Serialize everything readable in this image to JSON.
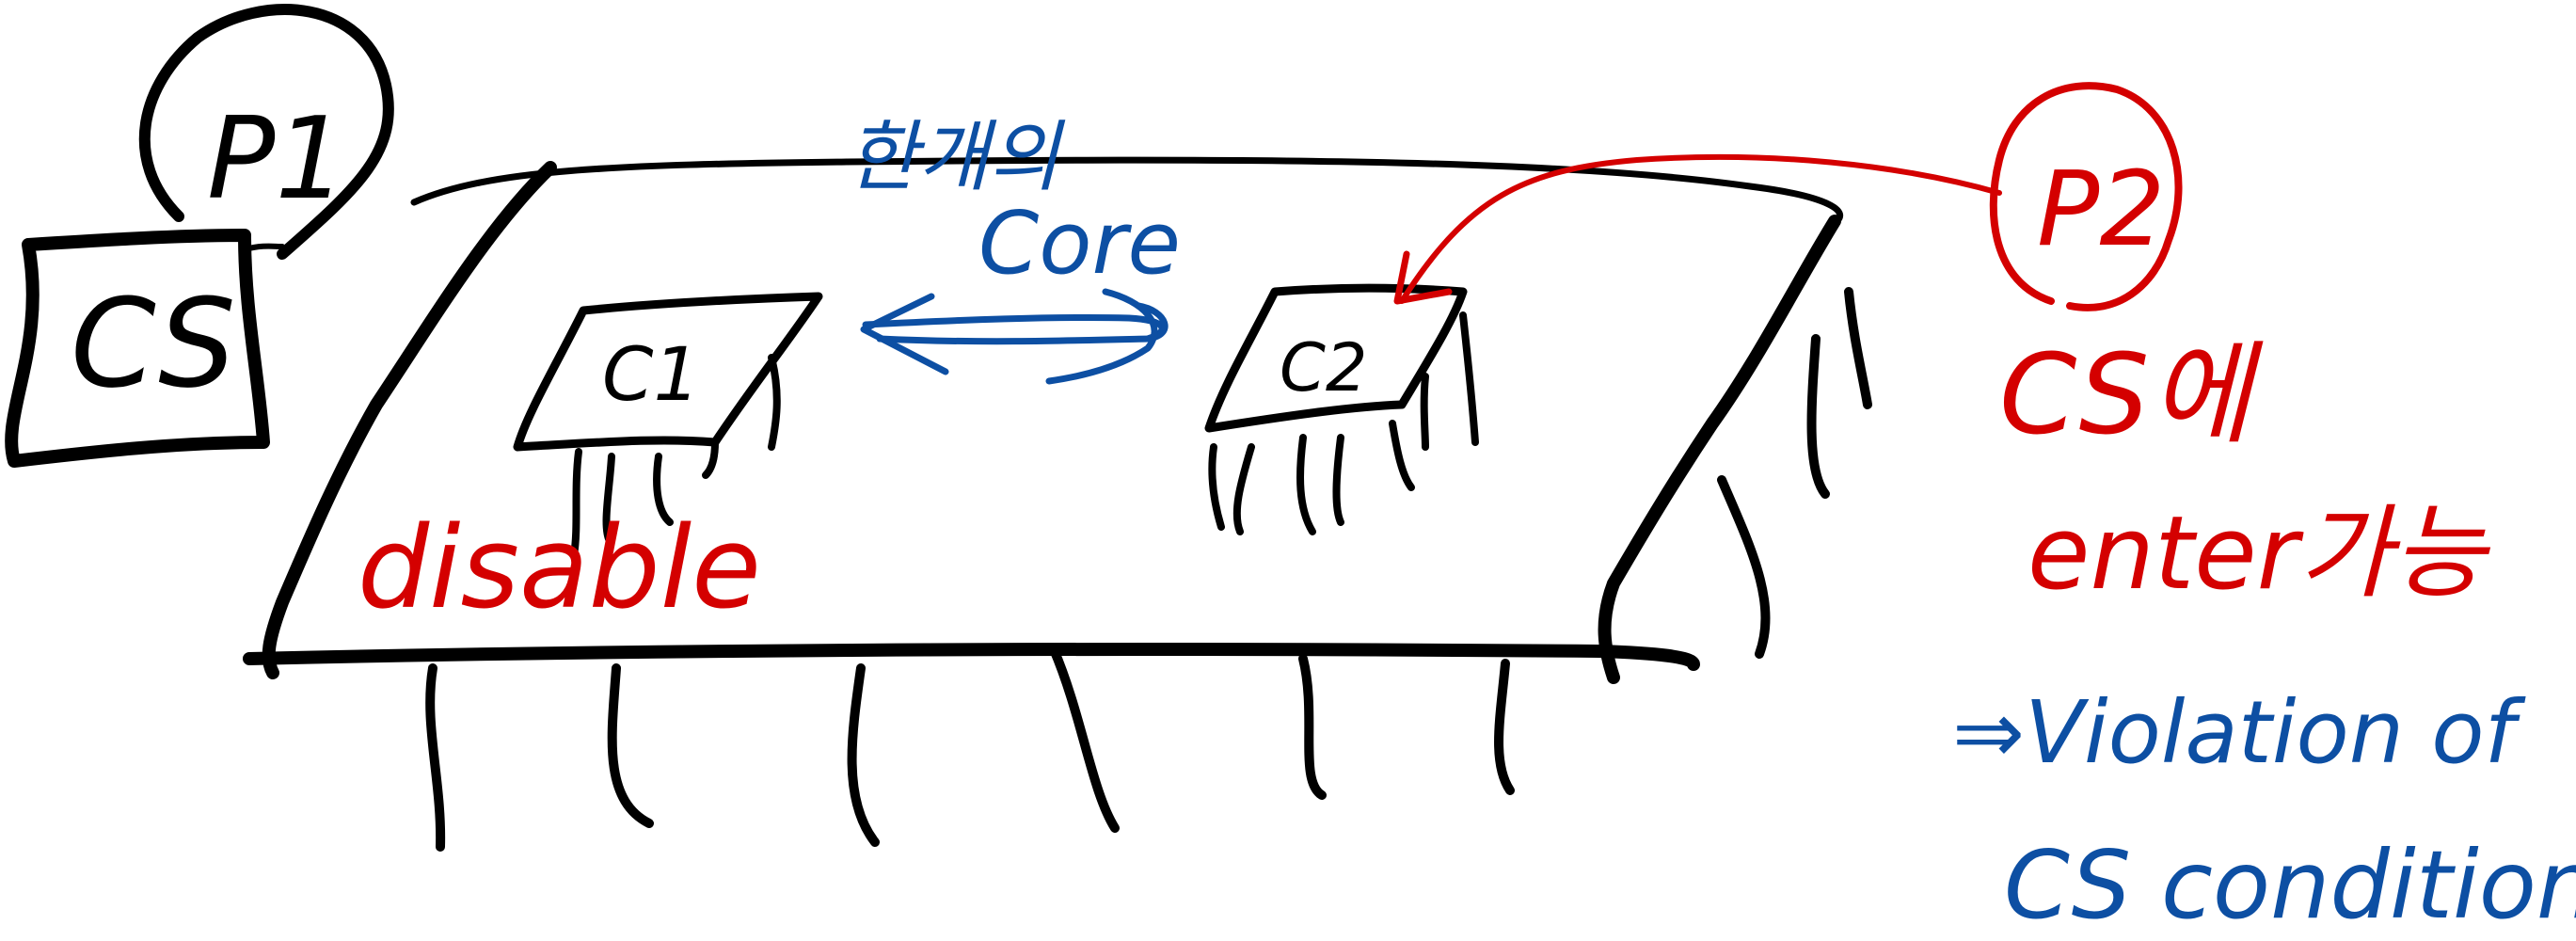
{
  "colors": {
    "ink": "#000000",
    "red": "#d40000",
    "blue": "#0d4fa3"
  },
  "labels": {
    "p1": "P1",
    "p2": "P2",
    "cs_box": "CS",
    "core_1": "C1",
    "core_2": "C2",
    "korean_top": "한개의",
    "core_word": "Core",
    "disable": "disable",
    "cs_enter_line1": "CS에",
    "cs_enter_line2": "enter가능",
    "violation_line1": "⇒Violation of",
    "violation_line2": "CS condition"
  }
}
